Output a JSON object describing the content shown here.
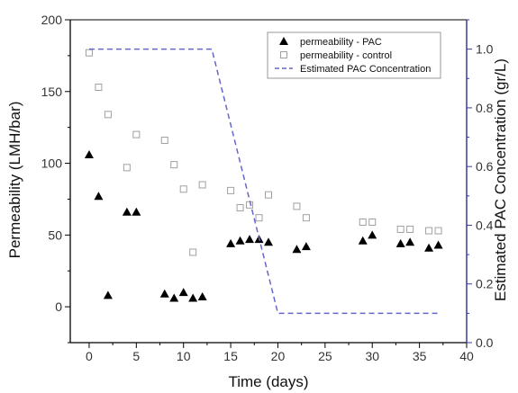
{
  "chart_data": {
    "type": "scatter",
    "xlabel": "Time (days)",
    "ylabel": "Permeability (LMH/bar)",
    "y2label": "Estimated PAC Concentration (gr/L)",
    "xlim": [
      -2,
      40
    ],
    "ylim": [
      -25,
      200
    ],
    "y2lim": [
      0,
      1.1
    ],
    "xticks": [
      "0",
      "5",
      "10",
      "15",
      "20",
      "25",
      "30",
      "35",
      "40"
    ],
    "yticks": [
      "0",
      "50",
      "100",
      "150",
      "200"
    ],
    "y2ticks": [
      "0.0",
      "0.2",
      "0.4",
      "0.6",
      "0.8",
      "1.0"
    ],
    "legend_position": "top-right",
    "grid": false,
    "colors": {
      "pac": "#000000",
      "control": "#a0a0a0",
      "concentration": "#6666cc",
      "right_axis": "#3a3aa0",
      "axis": "#000000"
    },
    "series": [
      {
        "name": "permeability - PAC",
        "marker": "filled-triangle",
        "axis": "left",
        "x": [
          0,
          1,
          2,
          4,
          5,
          8,
          9,
          10,
          11,
          12,
          15,
          16,
          17,
          18,
          19,
          22,
          23,
          29,
          30,
          33,
          34,
          36,
          37
        ],
        "y": [
          106,
          77,
          8,
          66,
          66,
          9,
          6,
          10,
          6,
          7,
          44,
          46,
          47,
          47,
          45,
          40,
          42,
          46,
          50,
          44,
          45,
          41,
          43
        ]
      },
      {
        "name": "permeability - control",
        "marker": "open-square",
        "axis": "left",
        "x": [
          0,
          1,
          2,
          4,
          5,
          8,
          9,
          10,
          11,
          12,
          15,
          16,
          17,
          18,
          19,
          22,
          23,
          29,
          30,
          33,
          34,
          36,
          37
        ],
        "y": [
          177,
          153,
          134,
          97,
          120,
          116,
          99,
          82,
          38,
          85,
          81,
          69,
          71,
          62,
          78,
          70,
          62,
          59,
          59,
          54,
          54,
          53,
          53
        ]
      },
      {
        "name": "Estimated PAC Concentration",
        "marker": "dashed-line",
        "axis": "right",
        "x": [
          0,
          13,
          20,
          37
        ],
        "y": [
          1.0,
          1.0,
          0.1,
          0.1
        ]
      }
    ]
  }
}
